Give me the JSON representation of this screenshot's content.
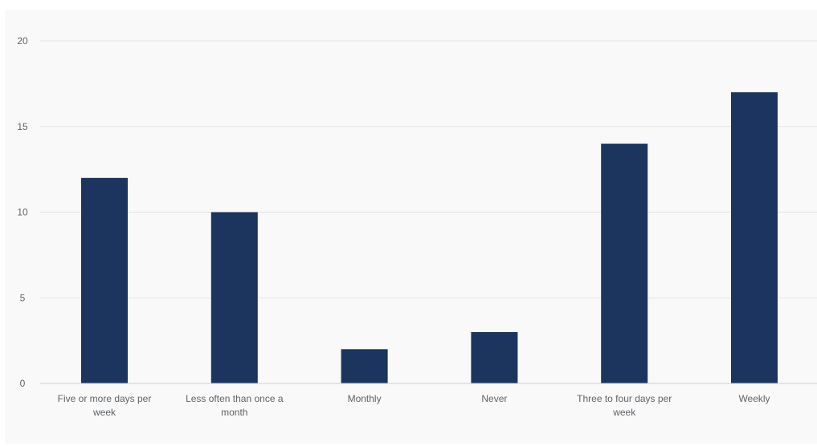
{
  "colors": {
    "bar": "#1b355e",
    "grid": "#e3e3e3",
    "baseline": "#c7cfe6",
    "panel_background": "#f9f9f9",
    "text": "#5f6368"
  },
  "chart_data": {
    "type": "bar",
    "title": "",
    "xlabel": "",
    "ylabel": "",
    "categories": [
      [
        "Five or more days per",
        "week"
      ],
      [
        "Less often than once a",
        "month"
      ],
      [
        "Monthly"
      ],
      [
        "Never"
      ],
      [
        "Three to four days per",
        "week"
      ],
      [
        "Weekly"
      ]
    ],
    "values": [
      12,
      10,
      2,
      3,
      14,
      17
    ],
    "ylim": [
      0,
      20
    ],
    "yticks": [
      "0",
      "5",
      "10",
      "15",
      "20"
    ],
    "grid": true,
    "legend": "none"
  }
}
